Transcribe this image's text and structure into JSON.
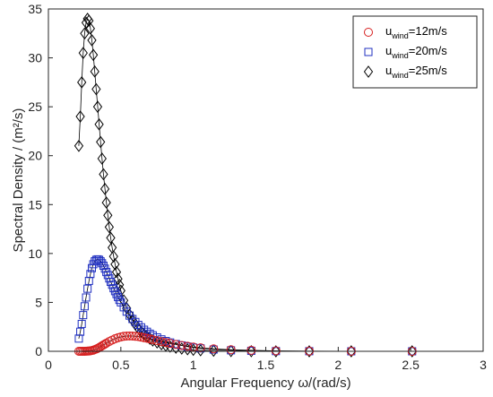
{
  "chart_data": {
    "type": "scatter",
    "xlabel": "Angular Frequency  ω/(rad/s)",
    "ylabel": "Spectral Density / (m²/s)",
    "xlim": [
      0,
      3
    ],
    "ylim": [
      0,
      35
    ],
    "xticks": [
      "0",
      "0.5",
      "1",
      "1.5",
      "2",
      "2.5",
      "3"
    ],
    "yticks": [
      "0",
      "5",
      "10",
      "15",
      "20",
      "25",
      "30",
      "35"
    ],
    "legend_position": "top-right",
    "series": [
      {
        "name": "u_wind=12m/s",
        "legend": {
          "base": "u",
          "sub": "wind",
          "suffix": "=12m/s"
        },
        "marker": "circle",
        "color": "#d62020",
        "x": [
          0.21,
          0.22,
          0.23,
          0.24,
          0.25,
          0.26,
          0.27,
          0.28,
          0.29,
          0.3,
          0.31,
          0.32,
          0.33,
          0.34,
          0.35,
          0.36,
          0.37,
          0.38,
          0.39,
          0.4,
          0.42,
          0.44,
          0.46,
          0.48,
          0.5,
          0.52,
          0.54,
          0.56,
          0.58,
          0.6,
          0.62,
          0.64,
          0.66,
          0.68,
          0.7,
          0.72,
          0.75,
          0.78,
          0.81,
          0.84,
          0.88,
          0.92,
          0.96,
          1.0,
          1.05,
          1.14,
          1.26,
          1.4,
          1.57,
          1.8,
          2.09,
          2.51
        ],
        "y": [
          0.0,
          0.0,
          0.0,
          0.0,
          0.0,
          0.01,
          0.02,
          0.03,
          0.05,
          0.08,
          0.12,
          0.17,
          0.23,
          0.3,
          0.38,
          0.47,
          0.56,
          0.65,
          0.74,
          0.83,
          1.0,
          1.15,
          1.28,
          1.39,
          1.47,
          1.53,
          1.56,
          1.57,
          1.56,
          1.54,
          1.5,
          1.45,
          1.39,
          1.33,
          1.26,
          1.19,
          1.09,
          0.99,
          0.9,
          0.81,
          0.7,
          0.6,
          0.52,
          0.44,
          0.36,
          0.25,
          0.16,
          0.1,
          0.05,
          0.02,
          0.01,
          0.0
        ]
      },
      {
        "name": "u_wind=20m/s",
        "legend": {
          "base": "u",
          "sub": "wind",
          "suffix": "=20m/s"
        },
        "marker": "square",
        "color": "#2030c0",
        "x": [
          0.21,
          0.22,
          0.23,
          0.24,
          0.25,
          0.26,
          0.27,
          0.28,
          0.29,
          0.3,
          0.31,
          0.32,
          0.33,
          0.34,
          0.35,
          0.36,
          0.37,
          0.38,
          0.39,
          0.4,
          0.41,
          0.42,
          0.43,
          0.44,
          0.45,
          0.46,
          0.47,
          0.48,
          0.49,
          0.5,
          0.52,
          0.54,
          0.56,
          0.58,
          0.6,
          0.62,
          0.64,
          0.66,
          0.68,
          0.7,
          0.72,
          0.75,
          0.78,
          0.81,
          0.84,
          0.88,
          0.92,
          0.96,
          1.0,
          1.05,
          1.14,
          1.26,
          1.4,
          1.57,
          1.8,
          2.09,
          2.51
        ],
        "y": [
          1.3,
          2.0,
          2.8,
          3.7,
          4.6,
          5.5,
          6.4,
          7.2,
          7.9,
          8.5,
          8.9,
          9.2,
          9.35,
          9.4,
          9.35,
          9.2,
          9.0,
          8.75,
          8.45,
          8.1,
          7.8,
          7.45,
          7.1,
          6.8,
          6.45,
          6.15,
          5.85,
          5.55,
          5.25,
          5.0,
          4.5,
          4.05,
          3.65,
          3.3,
          3.0,
          2.7,
          2.45,
          2.2,
          2.0,
          1.8,
          1.63,
          1.42,
          1.22,
          1.05,
          0.9,
          0.74,
          0.6,
          0.48,
          0.38,
          0.3,
          0.18,
          0.1,
          0.05,
          0.02,
          0.01,
          0.0,
          0.0
        ]
      },
      {
        "name": "u_wind=25m/s",
        "legend": {
          "base": "u",
          "sub": "wind",
          "suffix": "=25m/s"
        },
        "marker": "diamond",
        "color": "#000000",
        "x": [
          0.21,
          0.22,
          0.23,
          0.24,
          0.25,
          0.26,
          0.27,
          0.28,
          0.29,
          0.3,
          0.31,
          0.32,
          0.33,
          0.34,
          0.35,
          0.36,
          0.37,
          0.38,
          0.39,
          0.4,
          0.41,
          0.42,
          0.43,
          0.44,
          0.45,
          0.46,
          0.47,
          0.48,
          0.49,
          0.5,
          0.52,
          0.54,
          0.56,
          0.58,
          0.6,
          0.62,
          0.64,
          0.66,
          0.68,
          0.7,
          0.72,
          0.75,
          0.78,
          0.81,
          0.84,
          0.88,
          0.92,
          0.96,
          1.0,
          1.05,
          1.14,
          1.26,
          1.4,
          1.57,
          1.8,
          2.09,
          2.51
        ],
        "y": [
          21.0,
          24.0,
          27.5,
          30.5,
          32.5,
          33.6,
          34.0,
          33.8,
          33.0,
          31.8,
          30.3,
          28.6,
          26.8,
          25.0,
          23.2,
          21.4,
          19.7,
          18.1,
          16.6,
          15.2,
          13.9,
          12.7,
          11.6,
          10.6,
          9.7,
          8.9,
          8.1,
          7.4,
          6.8,
          6.2,
          5.2,
          4.4,
          3.75,
          3.2,
          2.75,
          2.35,
          2.0,
          1.72,
          1.48,
          1.28,
          1.1,
          0.9,
          0.72,
          0.58,
          0.48,
          0.36,
          0.27,
          0.2,
          0.15,
          0.1,
          0.05,
          0.02,
          0.01,
          0.0,
          0.0,
          0.0,
          0.0
        ]
      }
    ]
  }
}
